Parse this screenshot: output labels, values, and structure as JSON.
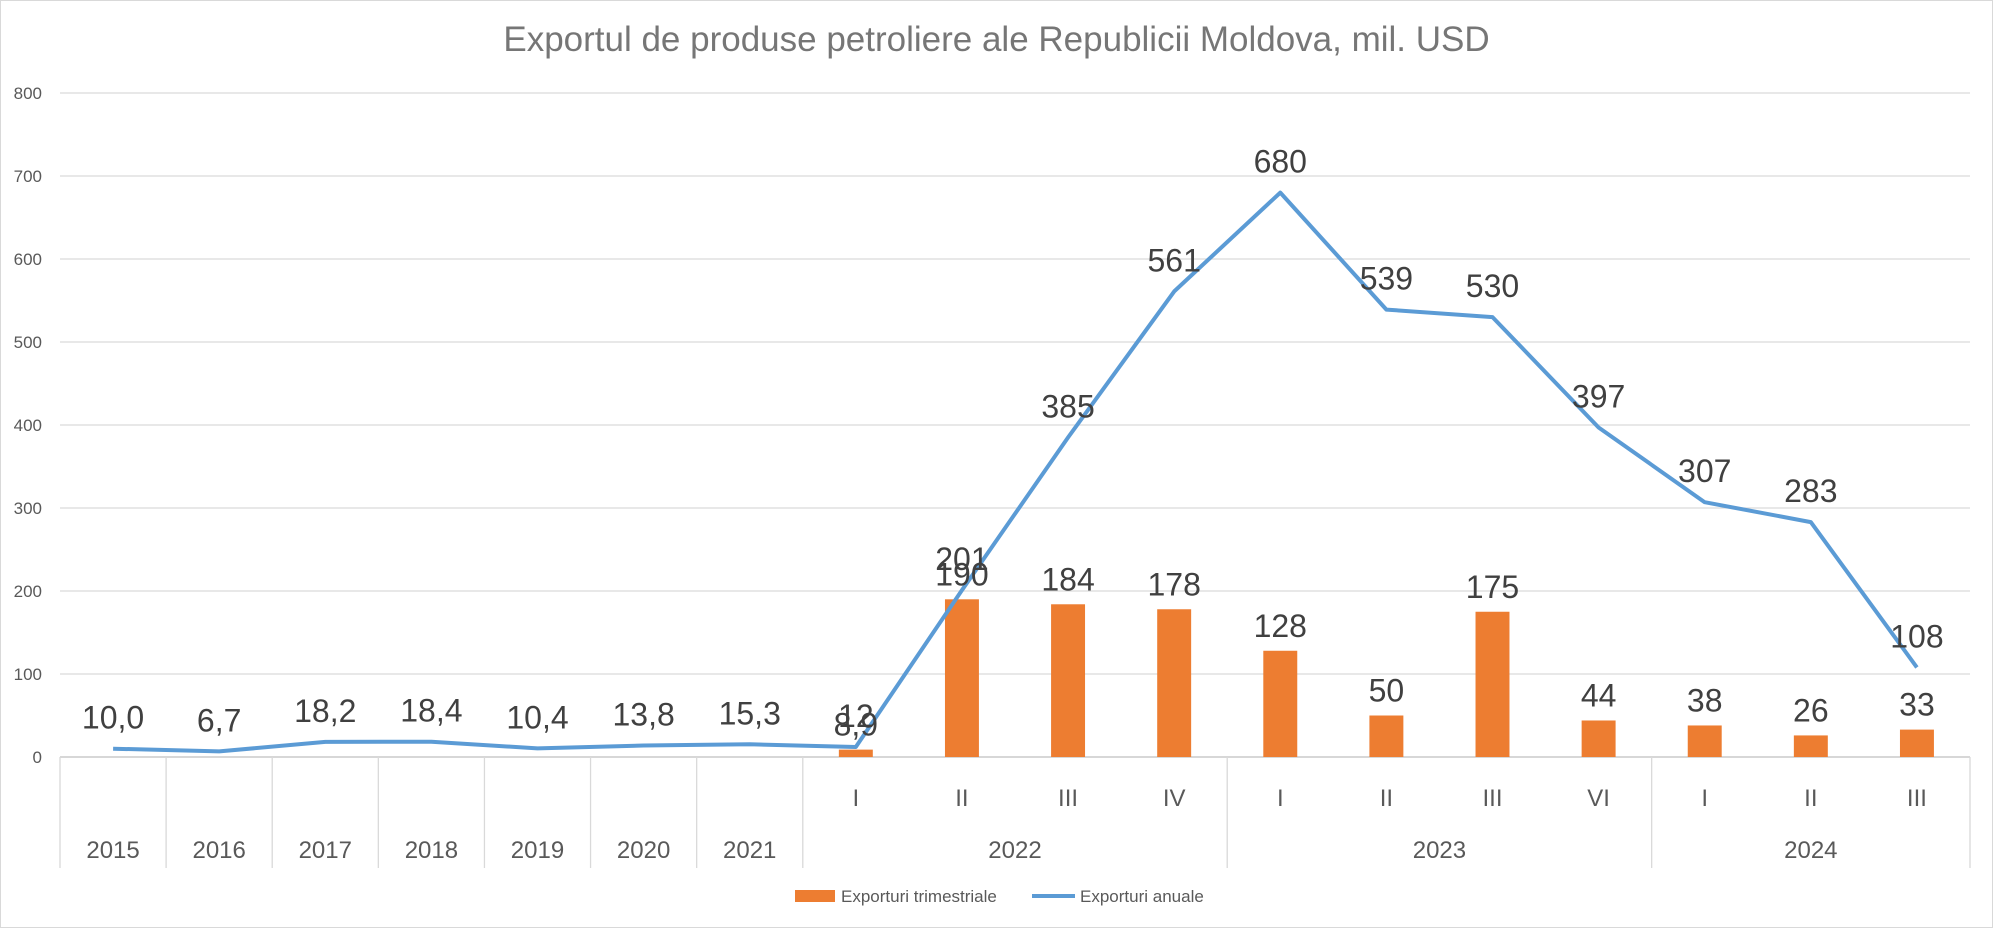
{
  "chart_data": {
    "type": "bar+line",
    "title": "Exportul de produse petroliere ale Republicii Moldova,  mil. USD",
    "ylim": [
      0,
      800
    ],
    "yticks": [
      0,
      100,
      200,
      300,
      400,
      500,
      600,
      700,
      800
    ],
    "grid": true,
    "legend_position": "bottom",
    "categories": [
      {
        "year": "2015",
        "quarter": ""
      },
      {
        "year": "2016",
        "quarter": ""
      },
      {
        "year": "2017",
        "quarter": ""
      },
      {
        "year": "2018",
        "quarter": ""
      },
      {
        "year": "2019",
        "quarter": ""
      },
      {
        "year": "2020",
        "quarter": ""
      },
      {
        "year": "2021",
        "quarter": ""
      },
      {
        "year": "2022",
        "quarter": "I"
      },
      {
        "year": "2022",
        "quarter": "II"
      },
      {
        "year": "2022",
        "quarter": "III"
      },
      {
        "year": "2022",
        "quarter": "IV"
      },
      {
        "year": "2023",
        "quarter": "I"
      },
      {
        "year": "2023",
        "quarter": "II"
      },
      {
        "year": "2023",
        "quarter": "III"
      },
      {
        "year": "2023",
        "quarter": "VI"
      },
      {
        "year": "2024",
        "quarter": "I"
      },
      {
        "year": "2024",
        "quarter": "II"
      },
      {
        "year": "2024",
        "quarter": "III"
      }
    ],
    "series": [
      {
        "name": "Exporturi trimestriale",
        "type": "bar",
        "color": "#ed7d31",
        "values": [
          null,
          null,
          null,
          null,
          null,
          null,
          null,
          8.9,
          190,
          184,
          178,
          128,
          50,
          175,
          44,
          38,
          26,
          33
        ],
        "labels": [
          "",
          "",
          "",
          "",
          "",
          "",
          "",
          "8,9",
          "190",
          "184",
          "178",
          "128",
          "50",
          "175",
          "44",
          "38",
          "26",
          "33"
        ]
      },
      {
        "name": "Exporturi anuale",
        "type": "line",
        "color": "#5b9bd5",
        "values": [
          10.0,
          6.7,
          18.2,
          18.4,
          10.4,
          13.8,
          15.3,
          12,
          201,
          385,
          561,
          680,
          539,
          530,
          397,
          307,
          283,
          108
        ],
        "labels": [
          "10,0",
          "6,7",
          "18,2",
          "18,4",
          "10,4",
          "13,8",
          "15,3",
          "12",
          "201",
          "385",
          "561",
          "680",
          "539",
          "530",
          "397",
          "307",
          "283",
          "108"
        ]
      }
    ]
  }
}
